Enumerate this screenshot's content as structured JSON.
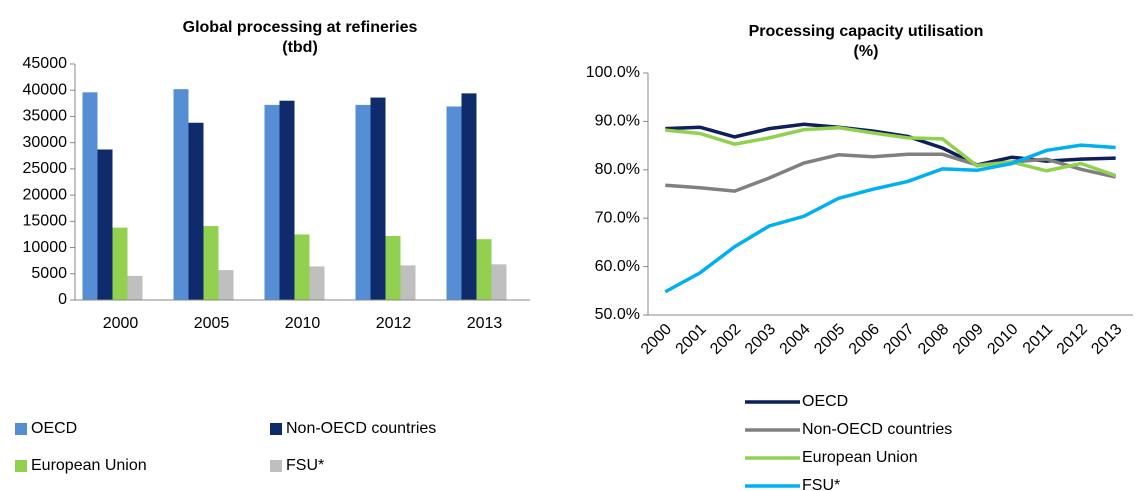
{
  "chart_data": [
    {
      "type": "bar",
      "title": "Global processing at refineries",
      "subtitle": "(tbd)",
      "categories": [
        "2000",
        "2005",
        "2010",
        "2012",
        "2013"
      ],
      "series": [
        {
          "name": "OECD",
          "color": "#558ed5",
          "values": [
            39600,
            40200,
            37200,
            37200,
            36900
          ]
        },
        {
          "name": "Non-OECD countries",
          "color": "#0f2b6b",
          "values": [
            28700,
            33800,
            38000,
            38600,
            39400
          ]
        },
        {
          "name": "European Union",
          "color": "#92d050",
          "values": [
            13800,
            14100,
            12500,
            12200,
            11600
          ]
        },
        {
          "name": "FSU*",
          "color": "#bfbfbf",
          "values": [
            4600,
            5700,
            6400,
            6600,
            6800
          ]
        }
      ],
      "ylim": [
        0,
        45000
      ],
      "yticks": [
        0,
        5000,
        10000,
        15000,
        20000,
        25000,
        30000,
        35000,
        40000,
        45000
      ],
      "legend": "bottom"
    },
    {
      "type": "line",
      "title": "Processing capacity utilisation",
      "subtitle": "(%)",
      "categories": [
        "2000",
        "2001",
        "2002",
        "2003",
        "2004",
        "2005",
        "2006",
        "2007",
        "2008",
        "2009",
        "2010",
        "2011",
        "2012",
        "2013"
      ],
      "series": [
        {
          "name": "OECD",
          "color": "#0e1f5b",
          "values": [
            88.5,
            88.8,
            86.8,
            88.5,
            89.4,
            88.8,
            88.0,
            86.9,
            84.5,
            81.0,
            82.6,
            81.8,
            82.2,
            82.4
          ]
        },
        {
          "name": "Non-OECD countries",
          "color": "#808080",
          "values": [
            76.8,
            76.3,
            75.6,
            78.3,
            81.4,
            83.1,
            82.7,
            83.2,
            83.2,
            81.0,
            81.6,
            82.2,
            80.1,
            78.5
          ]
        },
        {
          "name": "European Union",
          "color": "#92d050",
          "values": [
            88.2,
            87.5,
            85.3,
            86.6,
            88.3,
            88.7,
            87.6,
            86.6,
            86.4,
            80.8,
            81.6,
            79.8,
            81.3,
            78.8
          ]
        },
        {
          "name": "FSU*",
          "color": "#00b0f0",
          "values": [
            54.8,
            58.7,
            64.1,
            68.4,
            70.4,
            74.1,
            76.0,
            77.6,
            80.2,
            79.9,
            81.3,
            84.0,
            85.1,
            84.6
          ]
        }
      ],
      "ylim": [
        50,
        100
      ],
      "yticks": [
        {
          "value": 50,
          "label": "50.0%"
        },
        {
          "value": 60,
          "label": "60.0%"
        },
        {
          "value": 70,
          "label": "70.0%"
        },
        {
          "value": 80,
          "label": "80.0%"
        },
        {
          "value": 90,
          "label": "90.0%"
        },
        {
          "value": 100,
          "label": "100.0%"
        }
      ],
      "legend": "bottom"
    }
  ]
}
